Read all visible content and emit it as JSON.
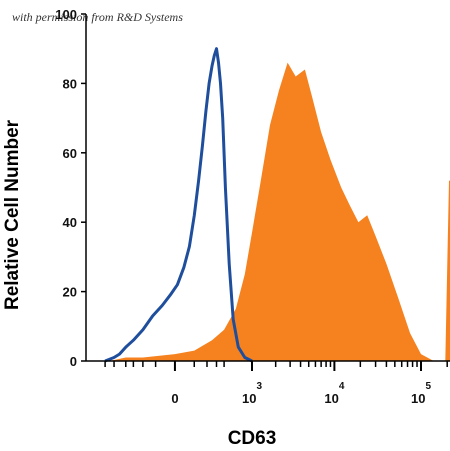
{
  "watermark": "with permission from R&D Systems",
  "chart_data": {
    "type": "area",
    "xlabel": "CD63",
    "ylabel": "Relative Cell Number",
    "x_scale": "biexponential",
    "ylim": [
      0,
      100
    ],
    "yticks": [
      0,
      20,
      40,
      60,
      80,
      100
    ],
    "xticks": [
      {
        "base": "0",
        "exp": ""
      },
      {
        "base": "10",
        "exp": "3"
      },
      {
        "base": "10",
        "exp": "4"
      },
      {
        "base": "10",
        "exp": "5"
      }
    ],
    "series": [
      {
        "style": "outline",
        "color": "#1f4e9c",
        "points": [
          [
            -800,
            0
          ],
          [
            -600,
            1
          ],
          [
            -500,
            2
          ],
          [
            -400,
            4
          ],
          [
            -300,
            6
          ],
          [
            -200,
            9
          ],
          [
            -120,
            13
          ],
          [
            -60,
            16
          ],
          [
            -20,
            19
          ],
          [
            10,
            22
          ],
          [
            40,
            27
          ],
          [
            70,
            33
          ],
          [
            100,
            42
          ],
          [
            130,
            52
          ],
          [
            160,
            62
          ],
          [
            190,
            72
          ],
          [
            220,
            80
          ],
          [
            250,
            85
          ],
          [
            275,
            88
          ],
          [
            300,
            90
          ],
          [
            325,
            86
          ],
          [
            350,
            80
          ],
          [
            380,
            70
          ],
          [
            420,
            50
          ],
          [
            480,
            28
          ],
          [
            550,
            12
          ],
          [
            650,
            4
          ],
          [
            800,
            1
          ],
          [
            1000,
            0
          ]
        ]
      },
      {
        "style": "filled",
        "color": "#f5821f",
        "points": [
          [
            -700,
            0
          ],
          [
            -400,
            1
          ],
          [
            -200,
            1
          ],
          [
            0,
            2
          ],
          [
            100,
            3
          ],
          [
            250,
            6
          ],
          [
            400,
            9
          ],
          [
            600,
            15
          ],
          [
            800,
            25
          ],
          [
            1000,
            37
          ],
          [
            1300,
            52
          ],
          [
            1700,
            68
          ],
          [
            2200,
            78
          ],
          [
            2800,
            86
          ],
          [
            3500,
            82
          ],
          [
            4500,
            84
          ],
          [
            5500,
            76
          ],
          [
            7000,
            66
          ],
          [
            9000,
            58
          ],
          [
            12000,
            50
          ],
          [
            15000,
            45
          ],
          [
            19000,
            40
          ],
          [
            24000,
            42
          ],
          [
            30000,
            36
          ],
          [
            40000,
            28
          ],
          [
            55000,
            18
          ],
          [
            75000,
            8
          ],
          [
            100000,
            2
          ],
          [
            140000,
            0
          ],
          [
            190000,
            0
          ],
          [
            210000,
            52
          ],
          [
            240000,
            52
          ]
        ]
      }
    ]
  }
}
